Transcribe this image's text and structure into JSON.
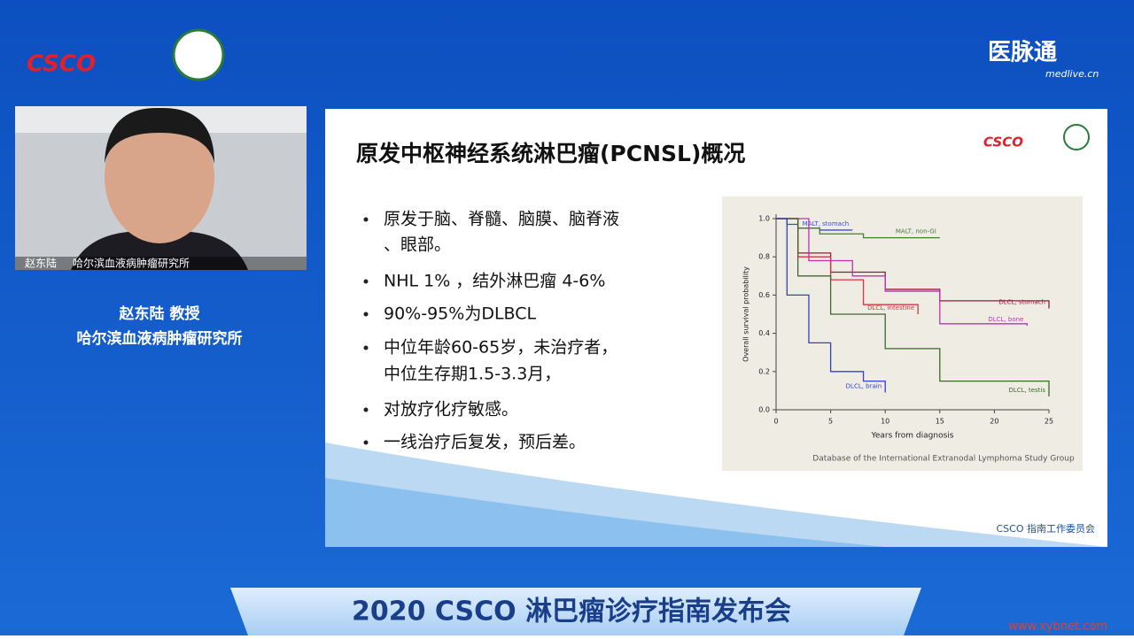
{
  "logos": {
    "left": "CSCO",
    "brand": "医脉通",
    "brand_site": "medlive.cn",
    "slide": "CSCO"
  },
  "video": {
    "caption_name": "赵东陆",
    "caption_org": "哈尔滨血液病肿瘤研究所"
  },
  "speaker": {
    "name": "赵东陆 教授",
    "org": "哈尔滨血液病肿瘤研究所"
  },
  "slide": {
    "title": "原发中枢神经系统淋巴瘤(PCNSL)概况",
    "bullets": [
      [
        "原发于脑、脊髓、脑膜、脑脊液",
        "、眼部。"
      ],
      [
        "NHL 1% ，结外淋巴瘤 4-6%"
      ],
      [
        "90%-95%为DLBCL"
      ],
      [
        "中位年龄60-65岁，未治疗者，",
        "中位生存期1.5-3.3月，"
      ],
      [
        "对放疗化疗敏感。"
      ],
      [
        "一线治疗后复发，预后差。"
      ]
    ],
    "footer": "CSCO 指南工作委员会",
    "chart": {
      "type": "line",
      "ylabel": "Overall survival probability",
      "xlabel": "Years from diagnosis",
      "source": "Database of the International Extranodal Lymphoma Study Group",
      "xlim": [
        0,
        25
      ],
      "ylim": [
        0,
        1
      ],
      "xticks": [
        0,
        5,
        10,
        15,
        20,
        25
      ],
      "yticks": [
        {
          "value": 0,
          "label": "0.0"
        },
        {
          "value": 0.2,
          "label": "0.2"
        },
        {
          "value": 0.4,
          "label": "0.4"
        },
        {
          "value": 0.6,
          "label": "0.6"
        },
        {
          "value": 0.8,
          "label": "0.8"
        },
        {
          "value": 1,
          "label": "1.0"
        }
      ],
      "series": [
        {
          "name": "MALT, stomach",
          "color": "#3a4fd0",
          "x": [
            0,
            1,
            2,
            4,
            7
          ],
          "values": [
            1.0,
            0.97,
            0.95,
            0.94,
            0.94
          ]
        },
        {
          "name": "MALT, non-GI",
          "color": "#4a7a3a",
          "x": [
            0,
            2,
            4,
            8,
            15
          ],
          "values": [
            1.0,
            0.95,
            0.92,
            0.9,
            0.9
          ]
        },
        {
          "name": "DLCL, stomach",
          "color": "#9a1830",
          "x": [
            0,
            2,
            5,
            10,
            15,
            25
          ],
          "values": [
            1.0,
            0.82,
            0.72,
            0.63,
            0.57,
            0.53
          ]
        },
        {
          "name": "DLCL, intestine",
          "color": "#e03040",
          "x": [
            0,
            2,
            5,
            8,
            13
          ],
          "values": [
            1.0,
            0.8,
            0.68,
            0.55,
            0.5
          ]
        },
        {
          "name": "DLCL, bone",
          "color": "#c030b0",
          "x": [
            0,
            3,
            7,
            10,
            15,
            23
          ],
          "values": [
            1.0,
            0.78,
            0.7,
            0.62,
            0.45,
            0.44
          ]
        },
        {
          "name": "DLCL, testis",
          "color": "#3d6a2a",
          "x": [
            0,
            2,
            5,
            10,
            15,
            25
          ],
          "values": [
            1.0,
            0.7,
            0.5,
            0.32,
            0.15,
            0.07
          ]
        },
        {
          "name": "DLCL, brain",
          "color": "#3040d0",
          "x": [
            0,
            1,
            3,
            5,
            8,
            10
          ],
          "values": [
            1.0,
            0.6,
            0.35,
            0.2,
            0.15,
            0.09
          ]
        }
      ]
    }
  },
  "banner": "2020 CSCO 淋巴瘤诊疗指南发布会",
  "watermark": "www.xybnet.com"
}
